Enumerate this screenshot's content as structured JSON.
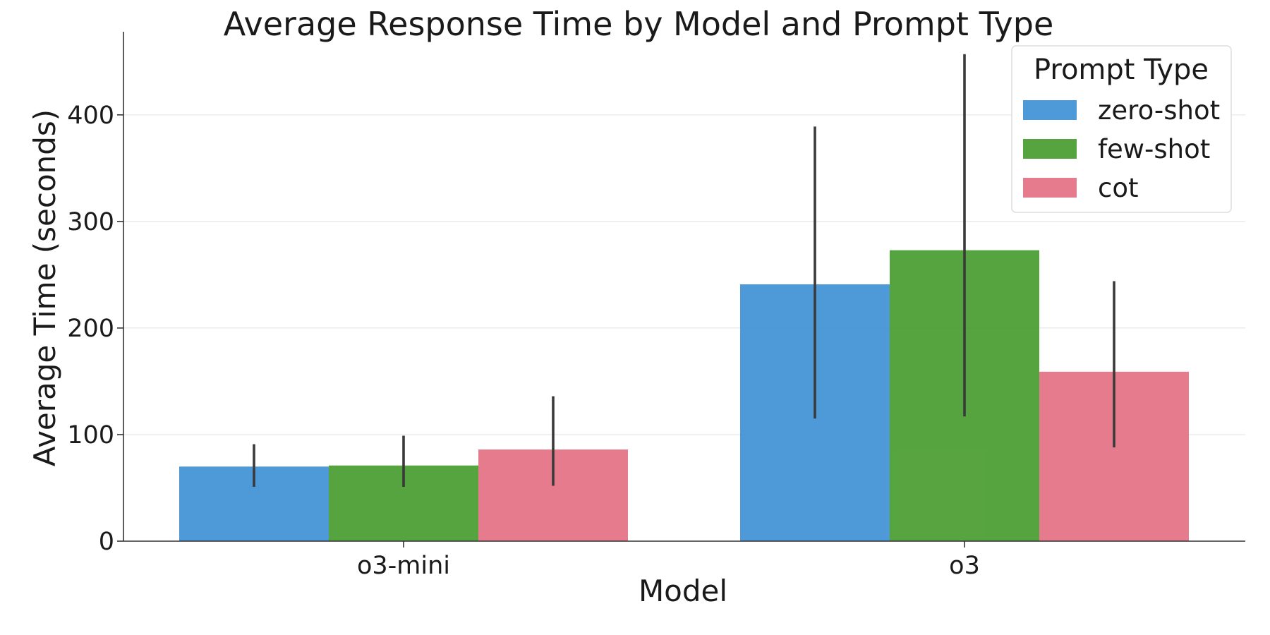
{
  "chart_data": {
    "type": "bar",
    "title": "Average Response Time by Model and Prompt Type",
    "xlabel": "Model",
    "ylabel": "Average Time (seconds)",
    "categories": [
      "o3-mini",
      "o3"
    ],
    "ylim": [
      0,
      478
    ],
    "yticks": [
      0,
      100,
      200,
      300,
      400
    ],
    "grid": "horizontal",
    "legend": {
      "title": "Prompt Type",
      "placement": "top-right"
    },
    "series": [
      {
        "name": "zero-shot",
        "color": "#3b8fd5",
        "values": [
          70,
          241
        ],
        "error_low": [
          51,
          115
        ],
        "error_high": [
          91,
          389
        ]
      },
      {
        "name": "few-shot",
        "color": "#449a2b",
        "values": [
          71,
          273
        ],
        "error_low": [
          51,
          117
        ],
        "error_high": [
          99,
          457
        ]
      },
      {
        "name": "cot",
        "color": "#e26d81",
        "values": [
          86,
          159
        ],
        "error_low": [
          52,
          88
        ],
        "error_high": [
          136,
          244
        ]
      }
    ]
  }
}
